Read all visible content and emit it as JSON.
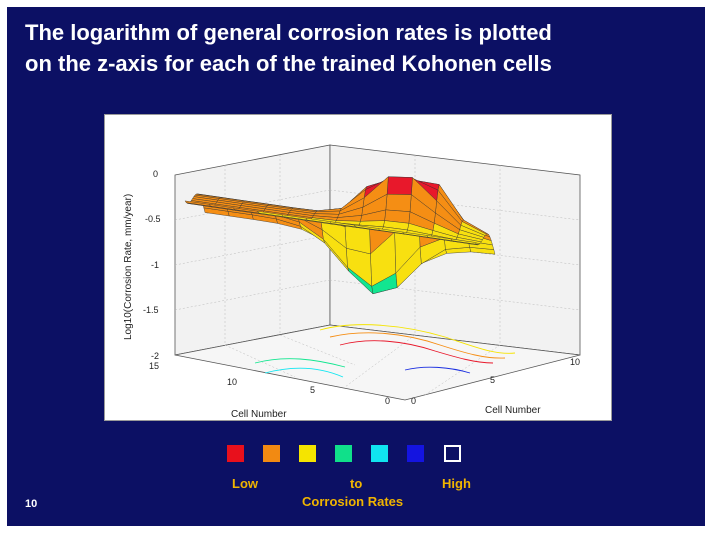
{
  "slide": {
    "title_line1": "The logarithm of general corrosion rates is plotted",
    "title_line2": "on the z-axis for each of the trained Kohonen cells",
    "page_number": "10"
  },
  "chart_data": {
    "type": "surface",
    "title": "",
    "zlabel": "Log10(Corrosion Rate, mm/year)",
    "xlabel": "Cell Number",
    "ylabel": "Cell Number",
    "zlim": [
      -2,
      0
    ],
    "z_ticks": [
      "0",
      "-0.5",
      "-1",
      "-1.5",
      "-2"
    ],
    "y_ticks": [
      "15",
      "10",
      "5",
      "0"
    ],
    "x_ticks": [
      "0",
      "5",
      "10"
    ],
    "surface_range": [
      -1.6,
      -0.2
    ],
    "colormap": [
      "#e8182b",
      "#f58e14",
      "#f8e010",
      "#12e690",
      "#12e6f0",
      "#1a2ee0"
    ]
  },
  "legend": {
    "colors": [
      "#e8101c",
      "#f28a12",
      "#f5e400",
      "#10e08a",
      "#10e4f0",
      "#1414e0",
      "#ffffff"
    ],
    "low_label": "Low",
    "to_label": "to",
    "high_label": "High",
    "caption": "Corrosion Rates"
  }
}
